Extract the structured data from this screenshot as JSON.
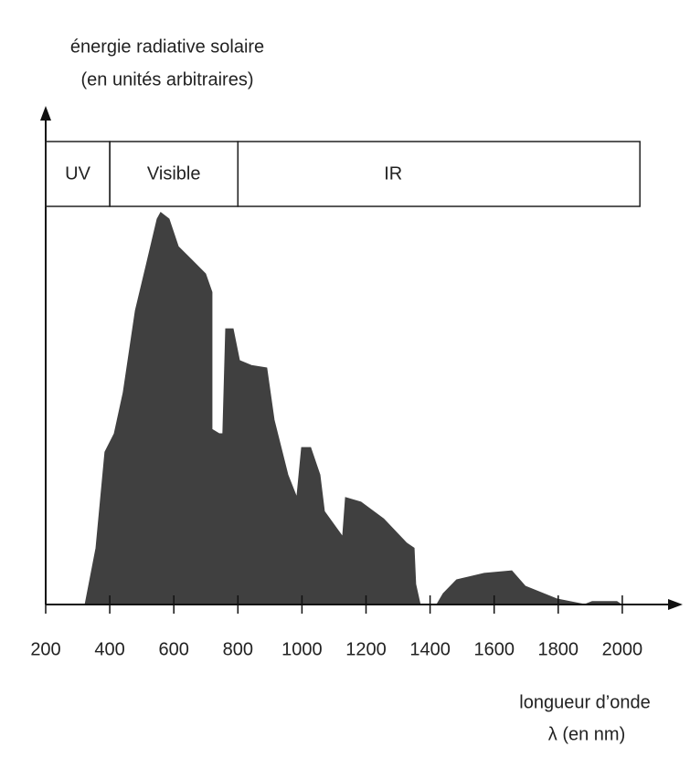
{
  "chart_data": {
    "type": "area",
    "y_label": [
      "énergie radiative solaire",
      "(en unités arbitraires)"
    ],
    "x_label": [
      "longueur d’onde",
      "λ (en nm)"
    ],
    "color": "#404040",
    "xlim": [
      200,
      2180
    ],
    "ylim": [
      0,
      100
    ],
    "xticks": [
      200,
      400,
      600,
      800,
      1000,
      1200,
      1400,
      1600,
      1800,
      2000
    ],
    "bands": [
      {
        "label": "UV",
        "from": 200,
        "to": 400
      },
      {
        "label": "Visible",
        "from": 400,
        "to": 800
      },
      {
        "label": "IR",
        "from": 800,
        "to": 2055
      }
    ],
    "x": [
      323,
      357,
      385,
      414,
      442,
      480,
      514,
      548,
      559,
      585,
      614,
      656,
      699,
      719,
      719,
      742,
      753,
      762,
      785,
      805,
      842,
      890,
      913,
      956,
      984,
      999,
      1027,
      1056,
      1070,
      1127,
      1136,
      1184,
      1255,
      1327,
      1350,
      1355,
      1369,
      1421,
      1441,
      1483,
      1569,
      1655,
      1697,
      1797,
      1883,
      1906,
      1983,
      1997
    ],
    "values": [
      0,
      11.4,
      30.8,
      34.5,
      42.8,
      59.4,
      68.6,
      77.9,
      79.2,
      77.9,
      72.3,
      69.6,
      66.8,
      63.1,
      35.4,
      34.5,
      34.5,
      55.7,
      55.7,
      49.3,
      48.3,
      47.8,
      37.3,
      26.2,
      21.6,
      31.7,
      31.7,
      26.2,
      18.8,
      13.7,
      21.6,
      20.7,
      17.3,
      12.4,
      11.4,
      4.1,
      0,
      0,
      2.2,
      5.0,
      6.3,
      6.8,
      3.7,
      1.1,
      0,
      0.6,
      0.6,
      0
    ]
  }
}
